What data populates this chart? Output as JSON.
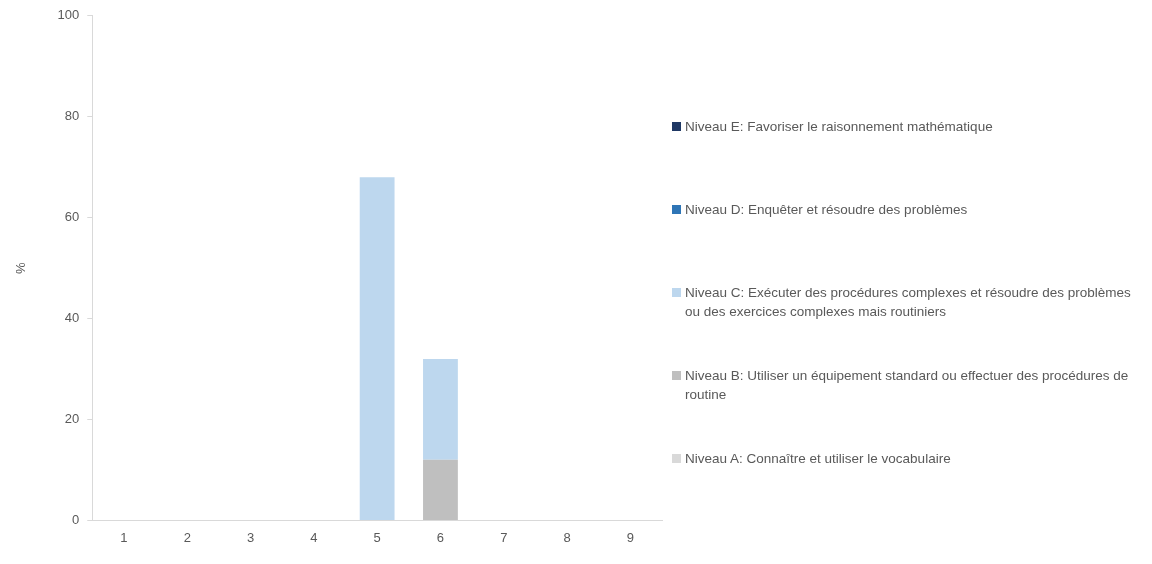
{
  "chart_data": {
    "type": "bar",
    "stacked": true,
    "ylabel": "%",
    "categories": [
      "1",
      "2",
      "3",
      "4",
      "5",
      "6",
      "7",
      "8",
      "9"
    ],
    "series": [
      {
        "name": "Niveau A: Connaître et utiliser le vocabulaire",
        "color": "#d9d9d9",
        "values": [
          0,
          0,
          0,
          0,
          0,
          0,
          0,
          0,
          0
        ]
      },
      {
        "name": "Niveau B: Utiliser un équipement standard ou effectuer des procédures de routine",
        "color": "#bfbfbf",
        "values": [
          0,
          0,
          0,
          0,
          0,
          12,
          0,
          0,
          0
        ]
      },
      {
        "name": "Niveau C: Exécuter des procédures complexes et résoudre des problèmes ou des exercices complexes mais routiniers",
        "color": "#bdd7ee",
        "values": [
          0,
          0,
          0,
          0,
          68,
          20,
          0,
          0,
          0
        ]
      },
      {
        "name": "Niveau D: Enquêter et résoudre des problèmes",
        "color": "#2e75b6",
        "values": [
          0,
          0,
          0,
          0,
          0,
          0,
          0,
          0,
          0
        ]
      },
      {
        "name": "Niveau E: Favoriser le raisonnement mathématique",
        "color": "#1f3864",
        "values": [
          0,
          0,
          0,
          0,
          0,
          0,
          0,
          0,
          0
        ]
      }
    ],
    "ylim": [
      0,
      100
    ],
    "yticks": [
      0,
      20,
      40,
      60,
      80,
      100
    ],
    "grid": false,
    "legend": "right"
  }
}
